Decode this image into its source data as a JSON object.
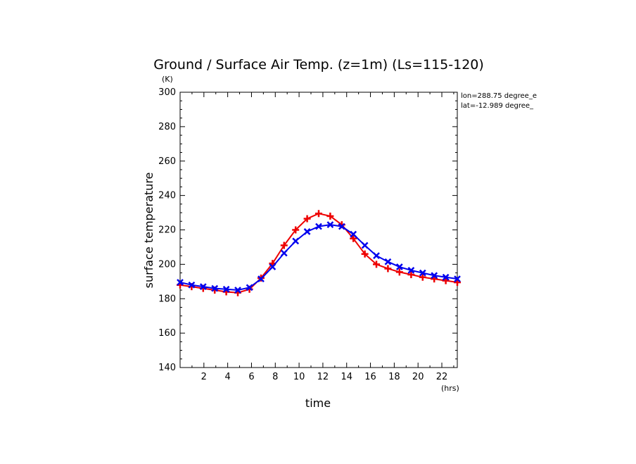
{
  "chart_data": {
    "type": "line",
    "title": "Ground / Surface Air Temp. (z=1m) (Ls=115-120)",
    "xlabel": "time",
    "ylabel": "surface temperature",
    "x_unit": "(hrs)",
    "y_unit": "(K)",
    "xlim": [
      0,
      23.3
    ],
    "ylim": [
      140,
      300
    ],
    "x_ticks": [
      2,
      4,
      6,
      8,
      10,
      12,
      14,
      16,
      18,
      20,
      22
    ],
    "y_ticks": [
      140,
      160,
      180,
      200,
      220,
      240,
      260,
      280,
      300
    ],
    "annotations": [
      "lon=288.75 degree_e",
      "lat=-12.989 degree_"
    ],
    "x": [
      0,
      0.97,
      1.94,
      2.91,
      3.88,
      4.85,
      5.83,
      6.8,
      7.77,
      8.74,
      9.71,
      10.68,
      11.65,
      12.62,
      13.59,
      14.56,
      15.53,
      16.5,
      17.47,
      18.44,
      19.42,
      20.39,
      21.36,
      22.33,
      23.3
    ],
    "series": [
      {
        "color": "#ee0000",
        "marker": "plus",
        "values": [
          188,
          187,
          186,
          185,
          184,
          183.5,
          185.5,
          192,
          200.5,
          211,
          220,
          226.5,
          229.5,
          228,
          223,
          215,
          206,
          200,
          197.5,
          195.5,
          194,
          192.5,
          191.5,
          190.5,
          189.5
        ]
      },
      {
        "color": "#0000ee",
        "marker": "cross",
        "values": [
          189.5,
          188,
          187,
          186,
          185.5,
          185,
          186.5,
          191.5,
          198.5,
          206.5,
          213.5,
          219,
          222,
          223,
          222,
          217.5,
          211,
          205,
          201.5,
          198.5,
          196.5,
          195,
          193.5,
          192.5,
          191.5
        ]
      }
    ]
  }
}
